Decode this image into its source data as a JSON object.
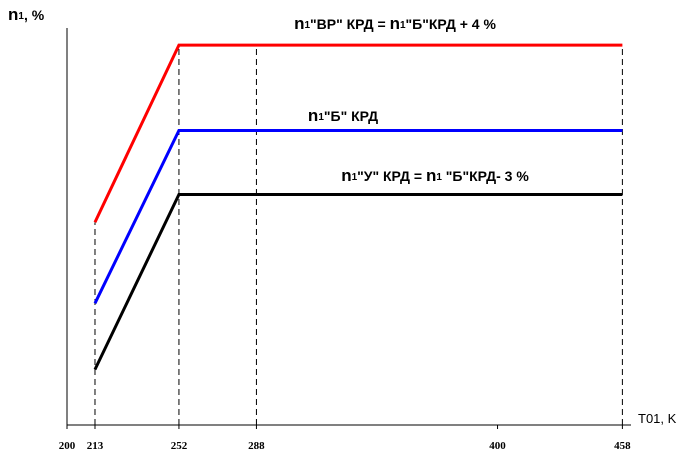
{
  "chart_data": {
    "type": "line",
    "ylabel": "n1, %",
    "xlabel": "T01, K",
    "annotations": [
      "n1\"ВР\" КРД = n1\"Б\"КРД + 4 %",
      "n1\"Б\" КРД",
      "n1\"У\" КРД = n1 \"Б\"КРД- 3 %"
    ],
    "x": [
      213,
      252,
      458
    ],
    "series": [
      {
        "name": "n1\"ВР\" КРД",
        "color": "#ff0000",
        "values": [
          95.7,
          104,
          104
        ]
      },
      {
        "name": "n1\"Б\" КРД",
        "color": "#0000ff",
        "values": [
          91.9,
          100,
          100
        ]
      },
      {
        "name": "n1\"У\" КРД",
        "color": "#000000",
        "values": [
          88.8,
          97,
          97
        ]
      }
    ],
    "xlim": [
      200,
      462
    ],
    "xticks": [
      200,
      213,
      252,
      288,
      400,
      458
    ],
    "ylim": [
      86.2,
      104.8
    ],
    "droplines": [
      213,
      252,
      288,
      458
    ]
  }
}
